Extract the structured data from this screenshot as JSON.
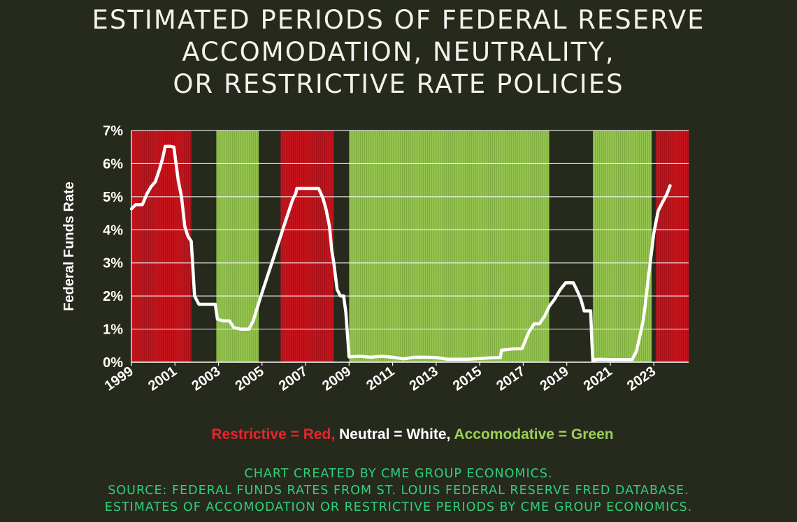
{
  "title_lines": [
    "ESTIMATED PERIODS OF FEDERAL RESERVE",
    "ACCOMODATION, NEUTRALITY,",
    "OR RESTRICTIVE RATE POLICIES"
  ],
  "legend": {
    "restrictive": "Restrictive = Red,",
    "neutral": "Neutral = White,",
    "accomodative": "Accomodative = Green"
  },
  "credits": [
    "CHART CREATED BY CME GROUP ECONOMICS.",
    "SOURCE: FEDERAL FUNDS RATES FROM ST. LOUIS FEDERAL RESERVE FRED DATABASE.",
    "ESTIMATES OF ACCOMODATION OR RESTRICTIVE PERIODS BY CME GROUP ECONOMICS."
  ],
  "colors": {
    "background": "#262a1d",
    "restrictive": "#c4141c",
    "accomodative": "#93c24e",
    "neutral": "#262a1d",
    "line": "#ffffff",
    "gridline": "#ffffff",
    "legend_restrictive": "#e8242b",
    "legend_accomodative": "#9dcf55",
    "credits": "#2fd07a"
  },
  "chart_data": {
    "type": "line",
    "title": "ESTIMATED PERIODS OF FEDERAL RESERVE ACCOMODATION, NEUTRALITY, OR RESTRICTIVE RATE POLICIES",
    "xlabel": "",
    "ylabel": "Federal Funds Rate",
    "xlim": [
      1999,
      2024.6
    ],
    "ylim": [
      0,
      7
    ],
    "yticks": [
      0,
      1,
      2,
      3,
      4,
      5,
      6,
      7
    ],
    "ytick_labels": [
      "0%",
      "1%",
      "2%",
      "3%",
      "4%",
      "5%",
      "6%",
      "7%"
    ],
    "xticks": [
      1999,
      2001,
      2003,
      2005,
      2007,
      2009,
      2011,
      2013,
      2015,
      2017,
      2019,
      2021,
      2023
    ],
    "xtick_labels": [
      "1999",
      "2001",
      "2003",
      "2005",
      "2007",
      "2009",
      "2011",
      "2013",
      "2015",
      "2017",
      "2019",
      "2021",
      "2023"
    ],
    "grid": true,
    "periods": [
      {
        "start": 1999.0,
        "end": 2001.75,
        "policy": "Restrictive"
      },
      {
        "start": 2001.75,
        "end": 2002.9,
        "policy": "Neutral"
      },
      {
        "start": 2002.9,
        "end": 2004.85,
        "policy": "Accomodative"
      },
      {
        "start": 2004.85,
        "end": 2005.85,
        "policy": "Neutral"
      },
      {
        "start": 2005.85,
        "end": 2008.3,
        "policy": "Restrictive"
      },
      {
        "start": 2008.3,
        "end": 2009.0,
        "policy": "Neutral"
      },
      {
        "start": 2009.0,
        "end": 2018.2,
        "policy": "Accomodative"
      },
      {
        "start": 2018.2,
        "end": 2020.2,
        "policy": "Neutral"
      },
      {
        "start": 2020.2,
        "end": 2022.9,
        "policy": "Accomodative"
      },
      {
        "start": 2022.9,
        "end": 2023.1,
        "policy": "Neutral"
      },
      {
        "start": 2023.1,
        "end": 2024.6,
        "policy": "Restrictive"
      }
    ],
    "series": [
      {
        "name": "Federal Funds Rate",
        "x": [
          1999.0,
          1999.2,
          1999.5,
          1999.7,
          1999.9,
          2000.1,
          2000.3,
          2000.45,
          2000.55,
          2000.8,
          2000.95,
          2001.05,
          2001.15,
          2001.3,
          2001.45,
          2001.6,
          2001.75,
          2001.9,
          2002.1,
          2002.5,
          2002.85,
          2002.95,
          2003.2,
          2003.5,
          2003.7,
          2004.0,
          2004.4,
          2004.6,
          2004.9,
          2005.2,
          2005.5,
          2005.8,
          2006.1,
          2006.4,
          2006.55,
          2006.6,
          2007.0,
          2007.4,
          2007.6,
          2007.8,
          2007.95,
          2008.1,
          2008.2,
          2008.3,
          2008.45,
          2008.6,
          2008.75,
          2008.85,
          2008.95,
          2009.0,
          2009.5,
          2010.0,
          2010.5,
          2011.0,
          2011.5,
          2012.0,
          2012.5,
          2013.0,
          2013.5,
          2014.0,
          2014.5,
          2015.0,
          2015.5,
          2015.95,
          2016.0,
          2016.5,
          2016.95,
          2017.1,
          2017.25,
          2017.5,
          2017.75,
          2018.0,
          2018.2,
          2018.45,
          2018.7,
          2018.95,
          2019.1,
          2019.3,
          2019.5,
          2019.65,
          2019.8,
          2019.9,
          2020.1,
          2020.15,
          2020.2,
          2020.3,
          2020.5,
          2021.0,
          2021.5,
          2022.0,
          2022.2,
          2022.35,
          2022.5,
          2022.6,
          2022.75,
          2022.85,
          2023.0,
          2023.2,
          2023.4,
          2023.6,
          2023.75
        ],
        "y": [
          4.63,
          4.76,
          4.76,
          5.07,
          5.3,
          5.45,
          5.85,
          6.2,
          6.52,
          6.52,
          6.5,
          6.0,
          5.5,
          5.0,
          4.1,
          3.8,
          3.65,
          2.0,
          1.75,
          1.75,
          1.75,
          1.3,
          1.25,
          1.25,
          1.05,
          1.0,
          1.0,
          1.25,
          1.9,
          2.5,
          3.1,
          3.7,
          4.3,
          4.9,
          5.1,
          5.25,
          5.25,
          5.25,
          5.25,
          4.95,
          4.6,
          4.1,
          3.4,
          3.0,
          2.2,
          2.0,
          2.0,
          1.5,
          0.6,
          0.16,
          0.18,
          0.15,
          0.18,
          0.15,
          0.1,
          0.15,
          0.15,
          0.14,
          0.09,
          0.09,
          0.09,
          0.11,
          0.13,
          0.14,
          0.36,
          0.4,
          0.41,
          0.66,
          0.9,
          1.16,
          1.16,
          1.41,
          1.69,
          1.91,
          2.19,
          2.4,
          2.4,
          2.4,
          2.13,
          1.9,
          1.55,
          1.55,
          1.55,
          0.65,
          0.05,
          0.08,
          0.09,
          0.08,
          0.08,
          0.08,
          0.33,
          0.77,
          1.21,
          1.68,
          2.56,
          3.08,
          3.9,
          4.57,
          4.83,
          5.08,
          5.33
        ]
      }
    ]
  }
}
